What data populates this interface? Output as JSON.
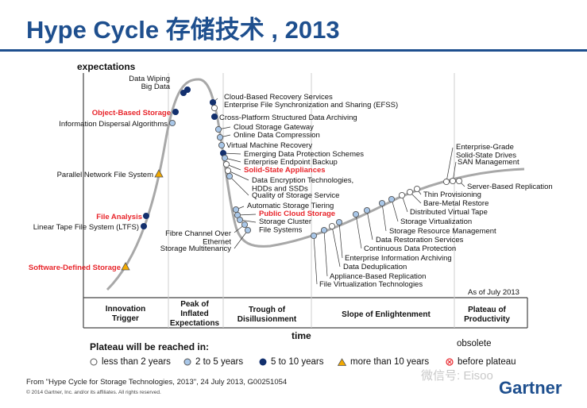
{
  "title": "Hype Cycle 存储技术 , 2013",
  "chart_data": {
    "type": "scatter",
    "title": "Hype Cycle 存储技术 , 2013",
    "ylabel": "expectations",
    "xlabel": "time",
    "as_of": "As of July 2013",
    "phases": [
      "Innovation Trigger",
      "Peak of Inflated Expectations",
      "Trough of Disillusionment",
      "Slope of Enlightenment",
      "Plateau of Productivity"
    ],
    "technologies": [
      {
        "name": "Software-Defined Storage",
        "highlight": true,
        "plateau": "more than 10 years"
      },
      {
        "name": "Linear Tape File System (LTFS)",
        "highlight": false,
        "plateau": "5 to 10 years"
      },
      {
        "name": "File Analysis",
        "highlight": true,
        "plateau": "5 to 10 years"
      },
      {
        "name": "Parallel Network File System",
        "highlight": false,
        "plateau": "more than 10 years"
      },
      {
        "name": "Information Dispersal Algorithms",
        "highlight": false,
        "plateau": "2 to 5 years"
      },
      {
        "name": "Object-Based Storage",
        "highlight": true,
        "plateau": "5 to 10 years"
      },
      {
        "name": "Big Data",
        "highlight": false,
        "plateau": "5 to 10 years"
      },
      {
        "name": "Data Wiping",
        "highlight": false,
        "plateau": "5 to 10 years"
      },
      {
        "name": "Cloud-Based Recovery Services",
        "highlight": false,
        "plateau": "5 to 10 years"
      },
      {
        "name": "Enterprise File Synchronization and Sharing (EFSS)",
        "highlight": false,
        "plateau": "less than 2 years"
      },
      {
        "name": "Cross-Platform Structured Data Archiving",
        "highlight": false,
        "plateau": "5 to 10 years"
      },
      {
        "name": "Cloud Storage Gateway",
        "highlight": false,
        "plateau": "2 to 5 years"
      },
      {
        "name": "Online Data Compression",
        "highlight": false,
        "plateau": "2 to 5 years"
      },
      {
        "name": "Virtual Machine Recovery",
        "highlight": false,
        "plateau": "2 to 5 years"
      },
      {
        "name": "Emerging Data Protection Schemes",
        "highlight": false,
        "plateau": "5 to 10 years"
      },
      {
        "name": "Enterprise Endpoint Backup",
        "highlight": false,
        "plateau": "2 to 5 years"
      },
      {
        "name": "Solid-State Appliances",
        "highlight": true,
        "plateau": "less than 2 years"
      },
      {
        "name": "Data Encryption Technologies, HDDs and SSDs",
        "highlight": false,
        "plateau": "less than 2 years"
      },
      {
        "name": "Quality of Storage Service",
        "highlight": false,
        "plateau": "2 to 5 years"
      },
      {
        "name": "Automatic Storage Tiering",
        "highlight": false,
        "plateau": "2 to 5 years"
      },
      {
        "name": "Public Cloud Storage",
        "highlight": true,
        "plateau": "2 to 5 years"
      },
      {
        "name": "Storage Cluster File Systems",
        "highlight": false,
        "plateau": "2 to 5 years"
      },
      {
        "name": "Fibre Channel Over Ethernet",
        "highlight": false,
        "plateau": "2 to 5 years"
      },
      {
        "name": "Storage Multitenancy",
        "highlight": false,
        "plateau": "2 to 5 years"
      },
      {
        "name": "File Virtualization Technologies",
        "highlight": false,
        "plateau": "2 to 5 years"
      },
      {
        "name": "Appliance-Based Replication",
        "highlight": false,
        "plateau": "2 to 5 years"
      },
      {
        "name": "Data Deduplication",
        "highlight": false,
        "plateau": "less than 2 years"
      },
      {
        "name": "Enterprise Information Archiving",
        "highlight": false,
        "plateau": "2 to 5 years"
      },
      {
        "name": "Continuous Data Protection",
        "highlight": false,
        "plateau": "2 to 5 years"
      },
      {
        "name": "Data Restoration Services",
        "highlight": false,
        "plateau": "2 to 5 years"
      },
      {
        "name": "Storage Resource Management",
        "highlight": false,
        "plateau": "2 to 5 years"
      },
      {
        "name": "Storage Virtualization",
        "highlight": false,
        "plateau": "2 to 5 years"
      },
      {
        "name": "Distributed Virtual Tape",
        "highlight": false,
        "plateau": "less than 2 years"
      },
      {
        "name": "Bare-Metal Restore",
        "highlight": false,
        "plateau": "less than 2 years"
      },
      {
        "name": "Thin Provisioning",
        "highlight": false,
        "plateau": "less than 2 years"
      },
      {
        "name": "Enterprise-Grade Solid-State Drives",
        "highlight": false,
        "plateau": "less than 2 years"
      },
      {
        "name": "SAN Management",
        "highlight": false,
        "plateau": "less than 2 years"
      },
      {
        "name": "Server-Based Replication",
        "highlight": false,
        "plateau": "less than 2 years"
      }
    ]
  },
  "legend": {
    "title": "Plateau will be reached in:",
    "items": [
      {
        "label": "less than 2 years",
        "symbol": "white-circle"
      },
      {
        "label": "2 to 5 years",
        "symbol": "lightblue-circle"
      },
      {
        "label": "5 to 10 years",
        "symbol": "navy-circle"
      },
      {
        "label": "more than 10 years",
        "symbol": "orange-triangle"
      }
    ],
    "obsolete_line1": "obsolete",
    "obsolete_line2": "before plateau"
  },
  "source": "From \"Hype Cycle for Storage Technologies, 2013\", 24 July 2013, G00251054",
  "copyright": "© 2014 Gartner, Inc. and/or its affiliates. All rights reserved.",
  "watermark": "微信号: Eisoo",
  "brand": "Gartner",
  "colors": {
    "title": "#1e4f8e",
    "highlight": "#e8262c",
    "curve": "#a8a8a8",
    "navy": "#13306e",
    "lightblue": "#a9c7e8",
    "orange": "#f2a900"
  }
}
